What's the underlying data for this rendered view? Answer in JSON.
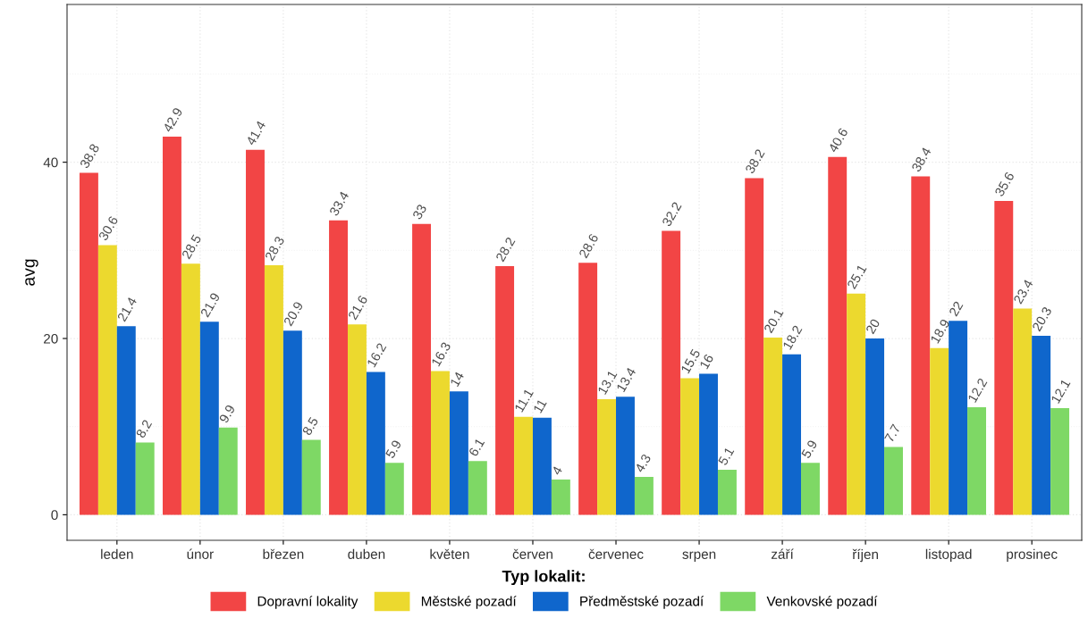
{
  "chart_data": {
    "type": "bar",
    "ylabel": "avg",
    "legend_title": "Typ lokalit:",
    "legend": "bottom",
    "grid": true,
    "data_labels": true,
    "categories": [
      "leden",
      "únor",
      "březen",
      "duben",
      "květen",
      "červen",
      "červenec",
      "srpen",
      "září",
      "říjen",
      "listopad",
      "prosinec"
    ],
    "ylim": [
      -2.9,
      57.9
    ],
    "yticks": [
      0,
      20,
      40
    ],
    "series": [
      {
        "name": "Dopravní lokality",
        "color": "#f24545",
        "values": [
          38.8,
          42.9,
          41.4,
          33.4,
          33,
          28.2,
          28.6,
          32.2,
          38.2,
          40.6,
          38.4,
          35.6
        ]
      },
      {
        "name": "Městské pozadí",
        "color": "#ecd92e",
        "values": [
          30.6,
          28.5,
          28.3,
          21.6,
          16.3,
          11.1,
          13.1,
          15.5,
          20.1,
          25.1,
          18.9,
          23.4
        ]
      },
      {
        "name": "Předměstské pozadí",
        "color": "#0f66cc",
        "values": [
          21.4,
          21.9,
          20.9,
          16.2,
          14,
          11,
          13.4,
          16,
          18.2,
          20,
          22,
          20.3
        ]
      },
      {
        "name": "Venkovské pozadí",
        "color": "#7ed865",
        "values": [
          8.2,
          9.9,
          8.5,
          5.9,
          6.1,
          4,
          4.3,
          5.1,
          5.9,
          7.7,
          12.2,
          12.1
        ]
      }
    ]
  }
}
